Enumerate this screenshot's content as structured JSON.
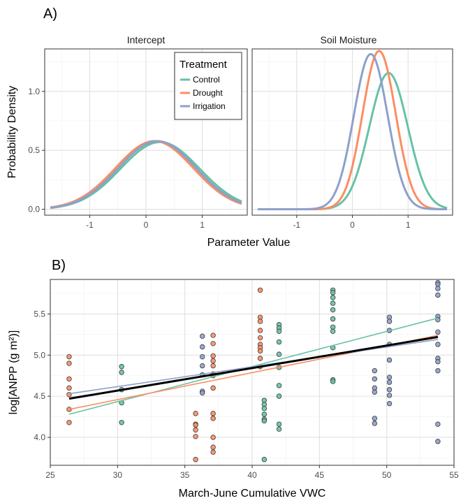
{
  "chart_data": [
    {
      "type": "line",
      "panel_label": "A)",
      "facets": [
        "Intercept",
        "Soil Moisture"
      ],
      "xlabel": "Parameter Value",
      "ylabel": "Probability Density",
      "xlim": [
        -1.8,
        1.8
      ],
      "ylim": [
        -0.05,
        1.36
      ],
      "xticks": [
        -1,
        0,
        1
      ],
      "yticks": [
        0.0,
        0.5,
        1.0
      ],
      "ytick_labels": [
        "0.0",
        "0.5",
        "1.0"
      ],
      "legend": {
        "title": "Treatment",
        "placement": "top-right of first facet"
      },
      "series": [
        {
          "name": "Control",
          "color": "#66c2a5",
          "density": {
            "Intercept": {
              "mean": 0.25,
              "sd": 0.7
            },
            "Soil Moisture": {
              "mean": 0.65,
              "sd": 0.345
            }
          }
        },
        {
          "name": "Drought",
          "color": "#fc8d62",
          "density": {
            "Intercept": {
              "mean": 0.15,
              "sd": 0.69
            },
            "Soil Moisture": {
              "mean": 0.48,
              "sd": 0.297
            }
          }
        },
        {
          "name": "Irrigation",
          "color": "#8da0cb",
          "density": {
            "Intercept": {
              "mean": 0.2,
              "sd": 0.69
            },
            "Soil Moisture": {
              "mean": 0.33,
              "sd": 0.303
            }
          }
        }
      ]
    },
    {
      "type": "scatter",
      "panel_label": "B)",
      "xlabel": "March-June Cumulative VWC",
      "ylabel": "log[ANPP (g m²)]",
      "xlim": [
        25,
        55
      ],
      "ylim": [
        3.66,
        5.92
      ],
      "xticks": [
        25,
        30,
        35,
        40,
        45,
        50,
        55
      ],
      "yticks": [
        4.0,
        4.5,
        5.0,
        5.5
      ],
      "ytick_labels": [
        "4.0",
        "4.5",
        "5.0",
        "5.5"
      ],
      "series": [
        {
          "name": "Control",
          "color": "#66c2a5",
          "points": [
            [
              30.3,
              4.86
            ],
            [
              30.3,
              4.79
            ],
            [
              30.3,
              4.58
            ],
            [
              30.3,
              4.42
            ],
            [
              30.3,
              4.18
            ],
            [
              40.9,
              4.45
            ],
            [
              40.9,
              4.4
            ],
            [
              40.9,
              4.35
            ],
            [
              40.9,
              4.28
            ],
            [
              40.9,
              4.22
            ],
            [
              40.9,
              4.2
            ],
            [
              40.9,
              3.73
            ],
            [
              42.0,
              5.37
            ],
            [
              42.0,
              5.33
            ],
            [
              42.0,
              5.29
            ],
            [
              42.0,
              5.16
            ],
            [
              42.0,
              5.01
            ],
            [
              42.0,
              4.85
            ],
            [
              42.0,
              4.63
            ],
            [
              42.0,
              4.5
            ],
            [
              42.0,
              4.16
            ],
            [
              42.0,
              4.1
            ],
            [
              46.0,
              5.79
            ],
            [
              46.0,
              5.76
            ],
            [
              46.0,
              5.7
            ],
            [
              46.0,
              5.63
            ],
            [
              46.0,
              5.55
            ],
            [
              46.0,
              5.44
            ],
            [
              46.0,
              5.34
            ],
            [
              46.0,
              5.29
            ],
            [
              46.0,
              5.09
            ],
            [
              46.0,
              4.7
            ],
            [
              46.0,
              4.68
            ]
          ],
          "fit": [
            [
              26.4,
              4.28
            ],
            [
              53.8,
              5.45
            ]
          ]
        },
        {
          "name": "Drought",
          "color": "#fc8d62",
          "points": [
            [
              26.4,
              4.98
            ],
            [
              26.4,
              4.9
            ],
            [
              26.4,
              4.71
            ],
            [
              26.4,
              4.6
            ],
            [
              26.4,
              4.52
            ],
            [
              26.4,
              4.34
            ],
            [
              26.4,
              4.18
            ],
            [
              35.8,
              4.29
            ],
            [
              35.8,
              4.16
            ],
            [
              35.8,
              4.15
            ],
            [
              35.8,
              4.09
            ],
            [
              35.8,
              4.01
            ],
            [
              35.8,
              3.73
            ],
            [
              37.1,
              5.24
            ],
            [
              37.1,
              5.14
            ],
            [
              37.1,
              4.99
            ],
            [
              37.1,
              4.93
            ],
            [
              37.1,
              4.87
            ],
            [
              37.1,
              4.77
            ],
            [
              37.1,
              4.75
            ],
            [
              37.1,
              4.6
            ],
            [
              37.1,
              4.29
            ],
            [
              37.1,
              4.23
            ],
            [
              37.1,
              4.0
            ],
            [
              37.1,
              3.88
            ],
            [
              37.1,
              3.82
            ],
            [
              40.6,
              5.79
            ],
            [
              40.6,
              5.46
            ],
            [
              40.6,
              5.41
            ],
            [
              40.6,
              5.3
            ],
            [
              40.6,
              5.21
            ],
            [
              40.6,
              5.13
            ],
            [
              40.6,
              5.09
            ],
            [
              40.6,
              5.05
            ],
            [
              40.6,
              4.96
            ],
            [
              40.6,
              4.86
            ]
          ],
          "fit": [
            [
              26.4,
              4.34
            ],
            [
              53.8,
              5.24
            ]
          ]
        },
        {
          "name": "Irrigation",
          "color": "#8da0cb",
          "points": [
            [
              36.3,
              5.23
            ],
            [
              36.3,
              5.1
            ],
            [
              36.3,
              4.98
            ],
            [
              36.3,
              4.87
            ],
            [
              36.3,
              4.76
            ],
            [
              36.3,
              4.56
            ],
            [
              36.3,
              4.54
            ],
            [
              49.1,
              4.81
            ],
            [
              49.1,
              4.71
            ],
            [
              49.1,
              4.6
            ],
            [
              49.1,
              4.55
            ],
            [
              49.1,
              4.23
            ],
            [
              49.1,
              4.17
            ],
            [
              50.2,
              5.46
            ],
            [
              50.2,
              5.41
            ],
            [
              50.2,
              5.3
            ],
            [
              50.2,
              5.13
            ],
            [
              50.2,
              4.94
            ],
            [
              50.2,
              4.73
            ],
            [
              50.2,
              4.67
            ],
            [
              50.2,
              4.58
            ],
            [
              50.2,
              4.51
            ],
            [
              50.2,
              4.41
            ],
            [
              53.8,
              5.88
            ],
            [
              53.8,
              5.86
            ],
            [
              53.8,
              5.81
            ],
            [
              53.8,
              5.73
            ],
            [
              53.8,
              5.47
            ],
            [
              53.8,
              5.43
            ],
            [
              53.8,
              5.28
            ],
            [
              53.8,
              5.13
            ],
            [
              53.8,
              4.96
            ],
            [
              53.8,
              4.92
            ],
            [
              53.8,
              4.81
            ],
            [
              53.8,
              4.16
            ],
            [
              53.8,
              3.95
            ]
          ],
          "fit": [
            [
              26.4,
              4.53
            ],
            [
              53.8,
              5.19
            ]
          ]
        }
      ],
      "overall_fit": {
        "color": "#000000",
        "line": [
          [
            26.4,
            4.47
          ],
          [
            53.8,
            5.22
          ]
        ]
      }
    }
  ]
}
